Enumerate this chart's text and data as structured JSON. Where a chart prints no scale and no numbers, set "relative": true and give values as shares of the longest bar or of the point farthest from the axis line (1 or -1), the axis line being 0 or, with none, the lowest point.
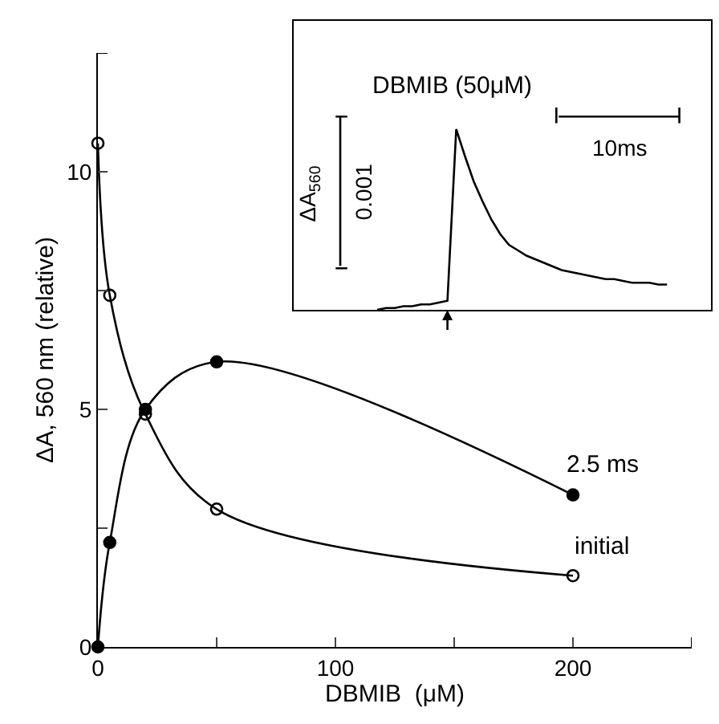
{
  "chart_data": [
    {
      "type": "line",
      "xlabel": "DBMIB  (μM)",
      "ylabel": "ΔA, 560 nm (relative)",
      "xlim": [
        0,
        250
      ],
      "ylim": [
        0,
        12.5
      ],
      "xticks": [
        0,
        100,
        200,
        {
          "value": 50,
          "label": null
        },
        {
          "value": 150,
          "label": null
        },
        {
          "value": 250,
          "label": null
        }
      ],
      "yticks": [
        0,
        5,
        10,
        {
          "value": 2.5,
          "label": null
        },
        {
          "value": 7.5,
          "label": null
        },
        {
          "value": 12.5,
          "label": null
        }
      ],
      "x": [
        0,
        5,
        20,
        50,
        200
      ],
      "series": [
        {
          "name": "2.5 ms",
          "color": "#000000",
          "marker": "circle",
          "values": [
            0,
            2.2,
            5.0,
            6.0,
            3.2
          ]
        },
        {
          "name": "initial",
          "color": "#000000",
          "marker": "circle-open",
          "values": [
            10.6,
            7.4,
            4.9,
            2.9,
            1.5
          ]
        }
      ]
    },
    {
      "type": "line",
      "title": "DBMIB (50μM)",
      "relative": true,
      "annotations": [
        "ΔA$_{560}$",
        "0.001",
        "10ms"
      ],
      "categories": [
        null,
        null,
        null,
        null,
        null,
        null,
        null,
        null,
        null,
        null,
        null,
        null,
        null,
        null,
        null,
        null,
        null,
        null,
        null,
        null,
        null,
        null,
        null,
        null,
        null,
        null,
        null,
        null,
        null,
        null,
        null,
        null,
        null,
        null
      ],
      "series": [
        {
          "color": "#000000",
          "values": [
            0,
            0.01,
            0.01,
            0.02,
            0.02,
            0.03,
            0.03,
            0.04,
            0.05,
            1.0,
            0.85,
            0.71,
            0.6,
            0.5,
            0.42,
            0.36,
            0.33,
            0.3,
            0.28,
            0.26,
            0.24,
            0.22,
            0.21,
            0.2,
            0.19,
            0.18,
            0.17,
            0.17,
            0.16,
            0.15,
            0.15,
            0.15,
            0.14,
            0.14
          ]
        }
      ]
    }
  ]
}
